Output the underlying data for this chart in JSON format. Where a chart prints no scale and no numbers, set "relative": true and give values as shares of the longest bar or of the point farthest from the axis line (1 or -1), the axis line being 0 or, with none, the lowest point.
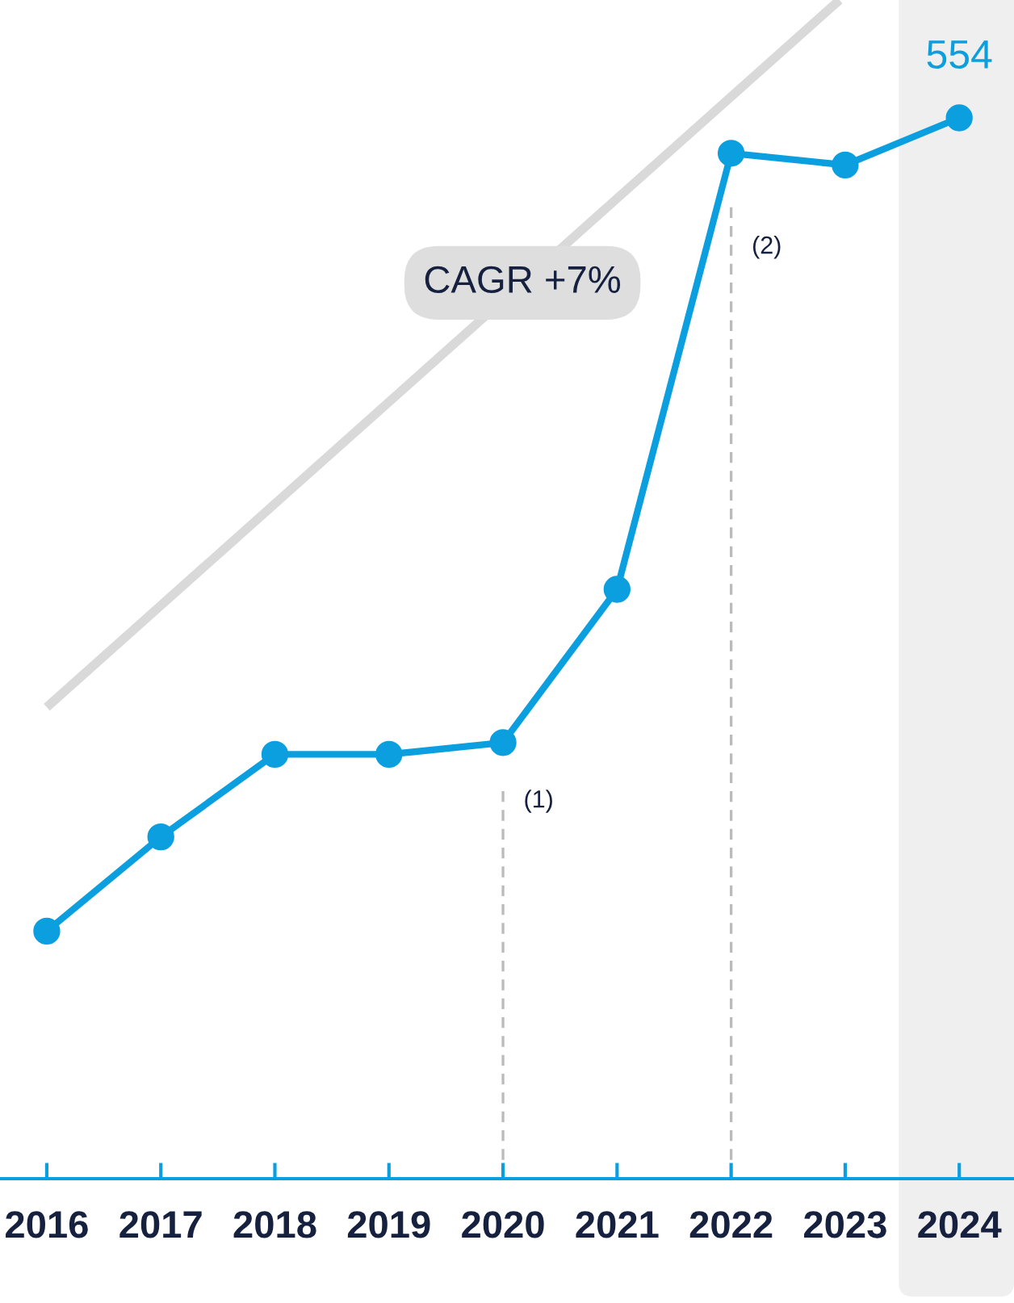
{
  "chart_data": {
    "type": "line",
    "relative": true,
    "xlim": [
      2015.59,
      2024.48
    ],
    "xticks": [
      2016,
      2017,
      2018,
      2019,
      2020,
      2021,
      2022,
      2023,
      2024
    ],
    "series": [
      {
        "type": "line",
        "color": "#d9d9d9",
        "x": [
          2016,
          2022.95
        ],
        "values": [
          0.4,
          1.0
        ],
        "marker": "none"
      },
      {
        "color": "#0b9fdf",
        "x": [
          2016,
          2017,
          2018,
          2019,
          2020,
          2021,
          2022,
          2023,
          2024
        ],
        "values": [
          0.21,
          0.29,
          0.36,
          0.36,
          0.37,
          0.5,
          0.87,
          0.86,
          0.9
        ],
        "marker": "circle"
      }
    ],
    "ref_lines": [
      {
        "axis": "x",
        "value": 2020,
        "color": "#bbbbbb",
        "line_style": "dashed"
      },
      {
        "axis": "x",
        "value": 2022,
        "color": "#bbbbbb",
        "line_style": "dashed"
      }
    ],
    "bands": [
      {
        "axis": "x",
        "from": 2023.47,
        "to": 2024.48,
        "color": "#efefef"
      }
    ],
    "annotations": [
      "CAGR +7%",
      {
        "text": "554",
        "x": 2024,
        "y": 0.9
      },
      {
        "text": "(1)",
        "x": 2020,
        "y": 0.33
      },
      {
        "text": "(2)",
        "x": 2022,
        "y": 0.8
      }
    ],
    "grid": false,
    "legend": false
  }
}
